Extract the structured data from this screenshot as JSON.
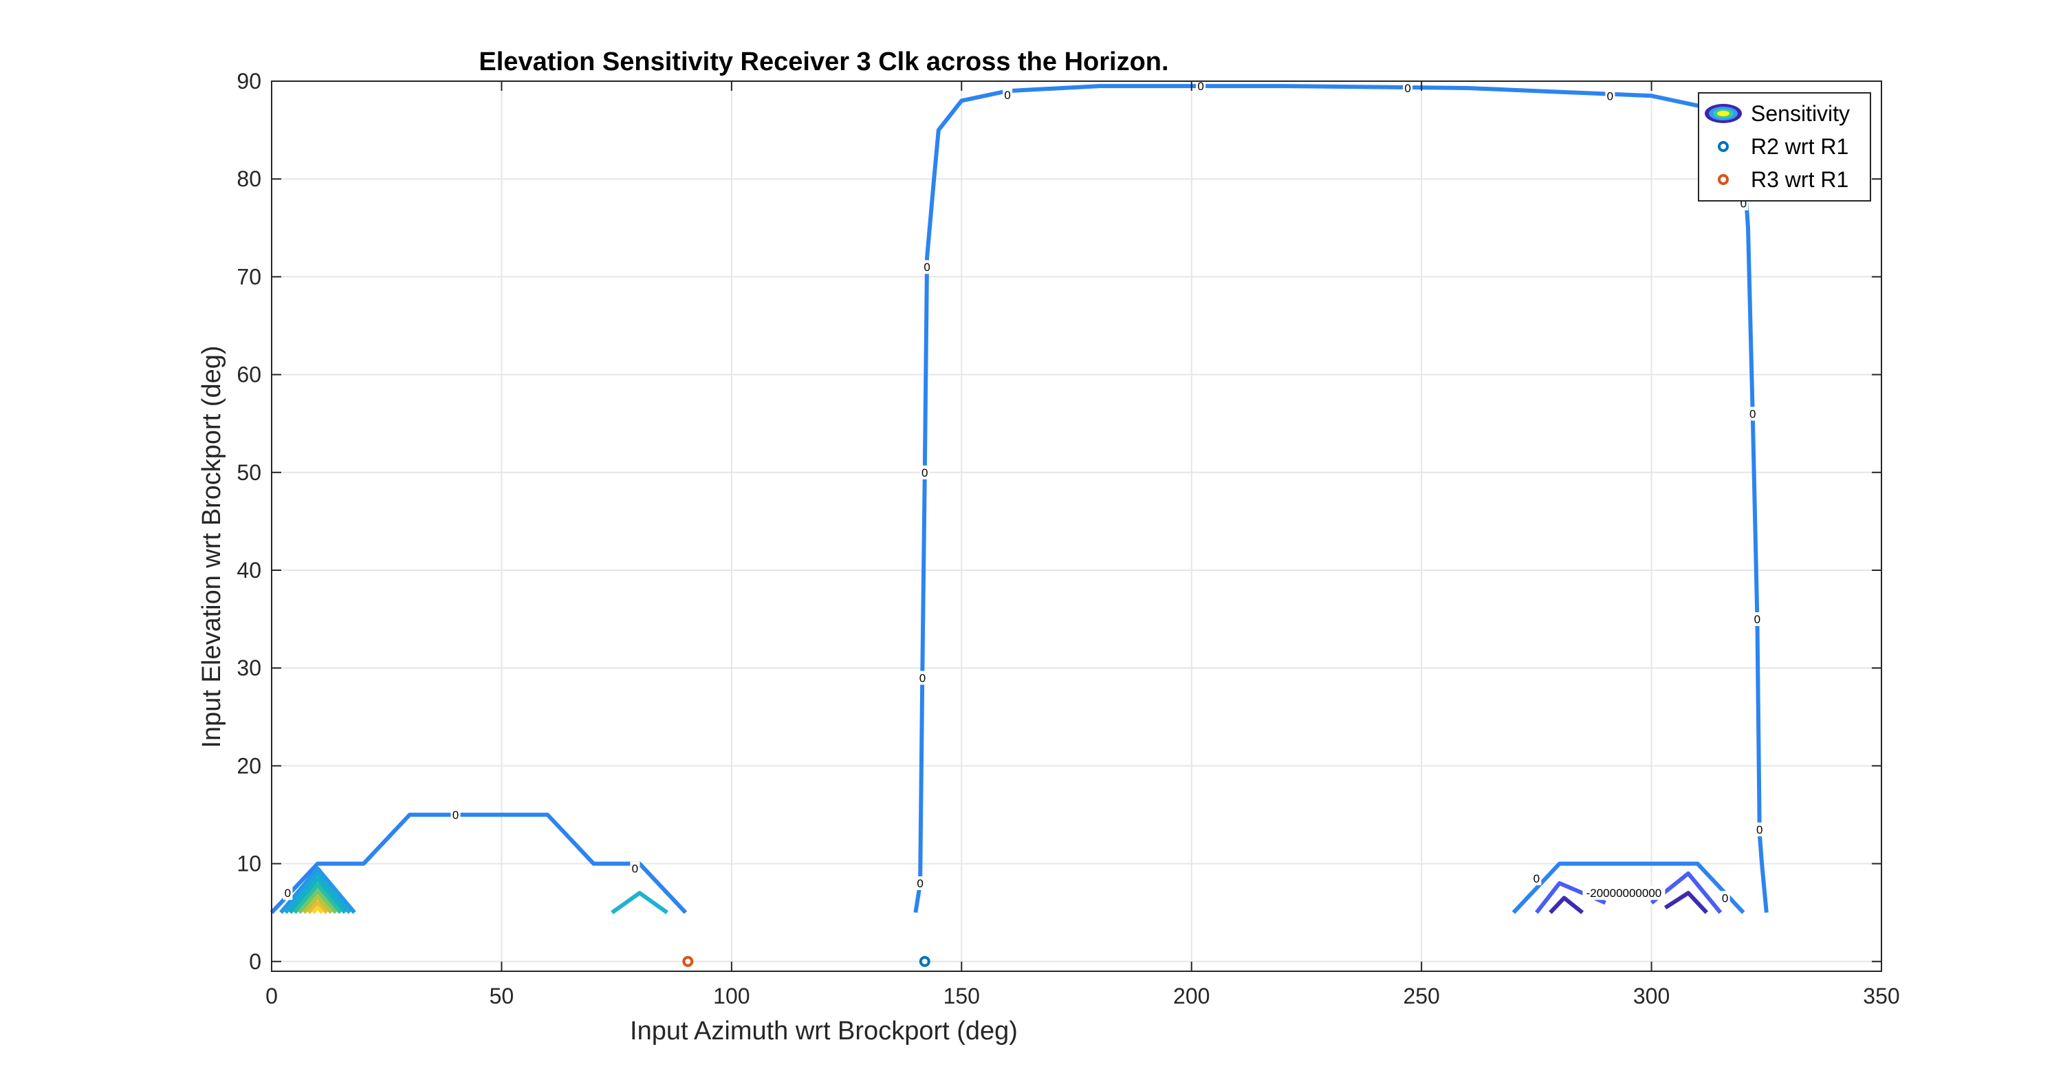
{
  "chart_data": {
    "type": "contour",
    "title": "Elevation Sensitivity Receiver 3 Clk across the Horizon.",
    "xlabel": "Input Azimuth wrt Brockport (deg)",
    "ylabel": "Input Elevation wrt Brockport (deg)",
    "xlim": [
      0,
      350
    ],
    "ylim": [
      -1,
      90
    ],
    "xticks": [
      0,
      50,
      100,
      150,
      200,
      250,
      300,
      350
    ],
    "yticks": [
      0,
      10,
      20,
      30,
      40,
      50,
      60,
      70,
      80,
      90
    ],
    "grid": true,
    "legend_position": "top-right",
    "legend": [
      {
        "name": "Sensitivity",
        "marker": "contour",
        "color": "#3e26a8"
      },
      {
        "name": "R2 wrt R1",
        "marker": "circle",
        "color": "#0072bd"
      },
      {
        "name": "R3 wrt R1",
        "marker": "circle",
        "color": "#d95319"
      }
    ],
    "contours": [
      {
        "level": 0,
        "color": "#2c84f0",
        "points": [
          [
            140,
            5
          ],
          [
            141,
            8
          ],
          [
            141.5,
            30
          ],
          [
            142,
            50
          ],
          [
            142.5,
            72
          ],
          [
            144,
            80
          ],
          [
            145,
            85
          ],
          [
            150,
            88
          ],
          [
            160,
            89
          ],
          [
            180,
            89.5
          ],
          [
            220,
            89.5
          ],
          [
            260,
            89.3
          ],
          [
            300,
            88.5
          ],
          [
            315,
            87
          ],
          [
            320,
            85
          ],
          [
            320,
            82
          ],
          [
            321,
            75
          ],
          [
            322,
            56
          ],
          [
            323,
            35
          ],
          [
            323.5,
            13
          ],
          [
            324,
            10
          ],
          [
            325,
            5
          ]
        ]
      },
      {
        "level": 0,
        "color": "#2c84f0",
        "points": [
          [
            0,
            5
          ],
          [
            10,
            10
          ],
          [
            20,
            10
          ],
          [
            30,
            15
          ],
          [
            60,
            15
          ],
          [
            70,
            10
          ],
          [
            80,
            10
          ],
          [
            90,
            5
          ]
        ]
      },
      {
        "level": 0,
        "color": "#2c84f0",
        "points": [
          [
            270,
            5
          ],
          [
            280,
            10
          ],
          [
            310,
            10
          ],
          [
            320,
            5
          ]
        ]
      },
      {
        "level": null,
        "color": "#4a5ef5",
        "points": [
          [
            275,
            5
          ],
          [
            280,
            8
          ],
          [
            290,
            6
          ]
        ]
      },
      {
        "level": null,
        "color": "#4a5ef5",
        "points": [
          [
            300,
            6
          ],
          [
            308,
            9
          ],
          [
            315,
            5
          ]
        ]
      },
      {
        "level": null,
        "color": "#3d2bb0",
        "points": [
          [
            278,
            5
          ],
          [
            281,
            6.5
          ],
          [
            285,
            5
          ]
        ]
      },
      {
        "level": -20000000000,
        "color": "#3d2bb0",
        "points": [
          [
            303,
            5.5
          ],
          [
            308,
            7
          ],
          [
            312,
            5
          ]
        ]
      },
      {
        "level": null,
        "color": "#1fb3cf",
        "points": [
          [
            74,
            5
          ],
          [
            80,
            7
          ],
          [
            86,
            5
          ]
        ]
      },
      {
        "level": null,
        "color": "#2596e8",
        "points": [
          [
            2,
            5
          ],
          [
            10,
            9.5
          ],
          [
            18,
            5
          ]
        ]
      },
      {
        "level": null,
        "color": "#1aa6d8",
        "points": [
          [
            3,
            5
          ],
          [
            10,
            9
          ],
          [
            17,
            5
          ]
        ]
      },
      {
        "level": null,
        "color": "#12b2c4",
        "points": [
          [
            4,
            5
          ],
          [
            10,
            8.4
          ],
          [
            16,
            5
          ]
        ]
      },
      {
        "level": null,
        "color": "#2cbea1",
        "points": [
          [
            5,
            5
          ],
          [
            10,
            7.8
          ],
          [
            15,
            5
          ]
        ]
      },
      {
        "level": null,
        "color": "#71c66e",
        "points": [
          [
            6,
            5
          ],
          [
            10,
            7.2
          ],
          [
            14,
            5
          ]
        ]
      },
      {
        "level": null,
        "color": "#b5c53c",
        "points": [
          [
            7,
            5
          ],
          [
            10,
            6.6
          ],
          [
            13,
            5
          ]
        ]
      },
      {
        "level": null,
        "color": "#e8ba38",
        "points": [
          [
            8,
            5
          ],
          [
            10,
            6.0
          ],
          [
            12,
            5
          ]
        ]
      },
      {
        "level": null,
        "color": "#f9d62a",
        "points": [
          [
            9,
            5
          ],
          [
            10,
            5.5
          ],
          [
            11,
            5
          ]
        ]
      }
    ],
    "contour_labels": [
      {
        "text": "0",
        "x": 160,
        "y": 88.6
      },
      {
        "text": "0",
        "x": 202,
        "y": 89.5
      },
      {
        "text": "0",
        "x": 247,
        "y": 89.3
      },
      {
        "text": "0",
        "x": 291,
        "y": 88.5
      },
      {
        "text": "0",
        "x": 320,
        "y": 77.5
      },
      {
        "text": "0",
        "x": 322,
        "y": 56
      },
      {
        "text": "0",
        "x": 323,
        "y": 35
      },
      {
        "text": "0",
        "x": 323.5,
        "y": 13.5
      },
      {
        "text": "0",
        "x": 142.5,
        "y": 71
      },
      {
        "text": "0",
        "x": 142,
        "y": 50
      },
      {
        "text": "0",
        "x": 141.5,
        "y": 29
      },
      {
        "text": "0",
        "x": 141,
        "y": 8
      },
      {
        "text": "0",
        "x": 40,
        "y": 15
      },
      {
        "text": "0",
        "x": 79,
        "y": 9.5
      },
      {
        "text": "0",
        "x": 3.5,
        "y": 7
      },
      {
        "text": "0",
        "x": 275,
        "y": 8.5
      },
      {
        "text": "0",
        "x": 316,
        "y": 6.5
      },
      {
        "text": "-20000000000",
        "x": 294,
        "y": 7
      }
    ],
    "points": [
      {
        "series": "R2 wrt R1",
        "x": 142,
        "y": 0,
        "color": "#0072bd"
      },
      {
        "series": "R3 wrt R1",
        "x": 90.5,
        "y": 0,
        "color": "#d95319"
      }
    ]
  }
}
